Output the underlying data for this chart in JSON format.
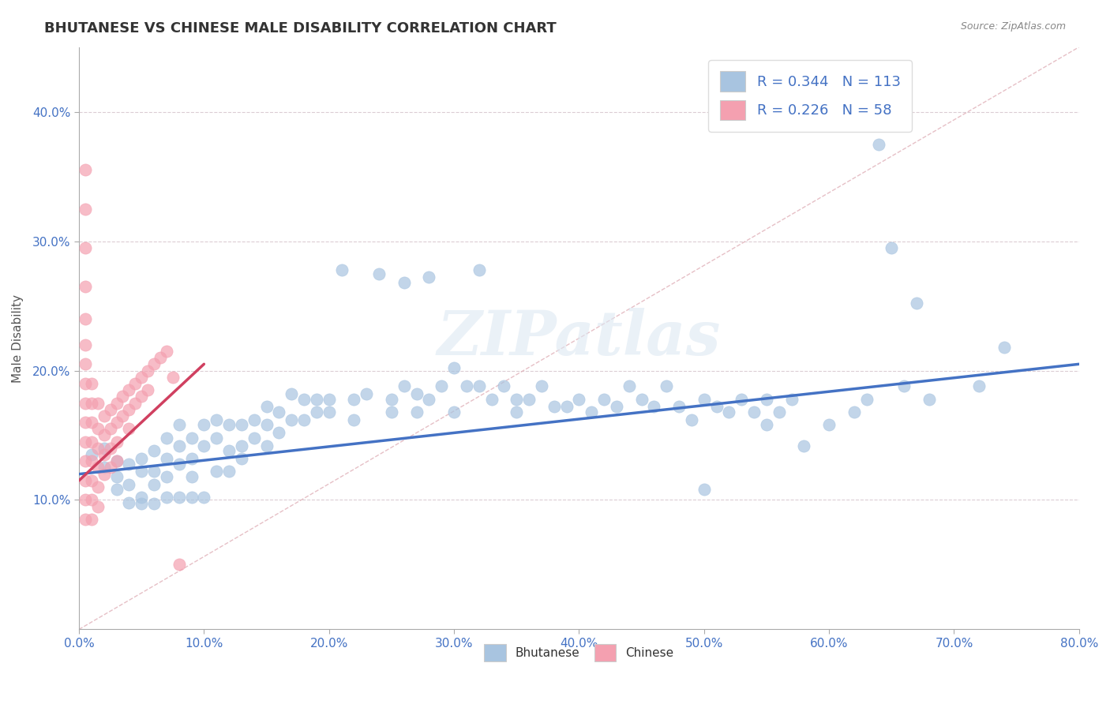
{
  "title": "BHUTANESE VS CHINESE MALE DISABILITY CORRELATION CHART",
  "source": "Source: ZipAtlas.com",
  "xlabel": "",
  "ylabel": "Male Disability",
  "xlim": [
    0.0,
    0.8
  ],
  "ylim": [
    0.0,
    0.45
  ],
  "xtick_labels": [
    "0.0%",
    "10.0%",
    "20.0%",
    "30.0%",
    "40.0%",
    "50.0%",
    "60.0%",
    "70.0%",
    "80.0%"
  ],
  "xtick_vals": [
    0.0,
    0.1,
    0.2,
    0.3,
    0.4,
    0.5,
    0.6,
    0.7,
    0.8
  ],
  "ytick_labels": [
    "10.0%",
    "20.0%",
    "30.0%",
    "40.0%"
  ],
  "ytick_vals": [
    0.1,
    0.2,
    0.3,
    0.4
  ],
  "bhutanese_color": "#a8c4e0",
  "chinese_color": "#f4a0b0",
  "bhutanese_R": 0.344,
  "bhutanese_N": 113,
  "chinese_R": 0.226,
  "chinese_N": 58,
  "trend_blue_color": "#4472c4",
  "trend_pink_color": "#d04060",
  "legend_R_color": "#4472c4",
  "watermark": "ZIPatlas",
  "blue_trend_x": [
    0.0,
    0.8
  ],
  "blue_trend_y": [
    0.12,
    0.205
  ],
  "pink_trend_x": [
    0.0,
    0.1
  ],
  "pink_trend_y": [
    0.115,
    0.205
  ],
  "ref_line_x": [
    0.0,
    0.8
  ],
  "ref_line_y": [
    0.0,
    0.45
  ],
  "bhutanese_scatter": [
    [
      0.01,
      0.135
    ],
    [
      0.02,
      0.125
    ],
    [
      0.02,
      0.14
    ],
    [
      0.03,
      0.13
    ],
    [
      0.03,
      0.118
    ],
    [
      0.03,
      0.108
    ],
    [
      0.04,
      0.128
    ],
    [
      0.04,
      0.112
    ],
    [
      0.04,
      0.098
    ],
    [
      0.05,
      0.132
    ],
    [
      0.05,
      0.122
    ],
    [
      0.05,
      0.102
    ],
    [
      0.05,
      0.097
    ],
    [
      0.06,
      0.138
    ],
    [
      0.06,
      0.122
    ],
    [
      0.06,
      0.112
    ],
    [
      0.06,
      0.097
    ],
    [
      0.07,
      0.148
    ],
    [
      0.07,
      0.132
    ],
    [
      0.07,
      0.118
    ],
    [
      0.07,
      0.102
    ],
    [
      0.08,
      0.158
    ],
    [
      0.08,
      0.142
    ],
    [
      0.08,
      0.128
    ],
    [
      0.08,
      0.102
    ],
    [
      0.09,
      0.148
    ],
    [
      0.09,
      0.132
    ],
    [
      0.09,
      0.118
    ],
    [
      0.09,
      0.102
    ],
    [
      0.1,
      0.158
    ],
    [
      0.1,
      0.142
    ],
    [
      0.1,
      0.102
    ],
    [
      0.11,
      0.162
    ],
    [
      0.11,
      0.148
    ],
    [
      0.11,
      0.122
    ],
    [
      0.12,
      0.158
    ],
    [
      0.12,
      0.138
    ],
    [
      0.12,
      0.122
    ],
    [
      0.13,
      0.158
    ],
    [
      0.13,
      0.142
    ],
    [
      0.13,
      0.132
    ],
    [
      0.14,
      0.162
    ],
    [
      0.14,
      0.148
    ],
    [
      0.15,
      0.172
    ],
    [
      0.15,
      0.158
    ],
    [
      0.15,
      0.142
    ],
    [
      0.16,
      0.168
    ],
    [
      0.16,
      0.152
    ],
    [
      0.17,
      0.182
    ],
    [
      0.17,
      0.162
    ],
    [
      0.18,
      0.178
    ],
    [
      0.18,
      0.162
    ],
    [
      0.19,
      0.178
    ],
    [
      0.19,
      0.168
    ],
    [
      0.2,
      0.178
    ],
    [
      0.2,
      0.168
    ],
    [
      0.21,
      0.278
    ],
    [
      0.22,
      0.178
    ],
    [
      0.22,
      0.162
    ],
    [
      0.23,
      0.182
    ],
    [
      0.24,
      0.275
    ],
    [
      0.25,
      0.178
    ],
    [
      0.25,
      0.168
    ],
    [
      0.26,
      0.268
    ],
    [
      0.26,
      0.188
    ],
    [
      0.27,
      0.182
    ],
    [
      0.27,
      0.168
    ],
    [
      0.28,
      0.272
    ],
    [
      0.28,
      0.178
    ],
    [
      0.29,
      0.188
    ],
    [
      0.3,
      0.202
    ],
    [
      0.3,
      0.168
    ],
    [
      0.31,
      0.188
    ],
    [
      0.32,
      0.278
    ],
    [
      0.32,
      0.188
    ],
    [
      0.33,
      0.178
    ],
    [
      0.34,
      0.188
    ],
    [
      0.35,
      0.178
    ],
    [
      0.35,
      0.168
    ],
    [
      0.36,
      0.178
    ],
    [
      0.37,
      0.188
    ],
    [
      0.38,
      0.172
    ],
    [
      0.39,
      0.172
    ],
    [
      0.4,
      0.178
    ],
    [
      0.41,
      0.168
    ],
    [
      0.42,
      0.178
    ],
    [
      0.43,
      0.172
    ],
    [
      0.44,
      0.188
    ],
    [
      0.45,
      0.178
    ],
    [
      0.46,
      0.172
    ],
    [
      0.47,
      0.188
    ],
    [
      0.48,
      0.172
    ],
    [
      0.49,
      0.162
    ],
    [
      0.5,
      0.178
    ],
    [
      0.5,
      0.108
    ],
    [
      0.51,
      0.172
    ],
    [
      0.52,
      0.168
    ],
    [
      0.53,
      0.178
    ],
    [
      0.54,
      0.168
    ],
    [
      0.55,
      0.178
    ],
    [
      0.55,
      0.158
    ],
    [
      0.56,
      0.168
    ],
    [
      0.57,
      0.178
    ],
    [
      0.58,
      0.142
    ],
    [
      0.6,
      0.158
    ],
    [
      0.62,
      0.168
    ],
    [
      0.63,
      0.178
    ],
    [
      0.64,
      0.375
    ],
    [
      0.65,
      0.295
    ],
    [
      0.66,
      0.188
    ],
    [
      0.67,
      0.252
    ],
    [
      0.68,
      0.178
    ],
    [
      0.72,
      0.188
    ],
    [
      0.74,
      0.218
    ]
  ],
  "chinese_scatter": [
    [
      0.005,
      0.16
    ],
    [
      0.005,
      0.145
    ],
    [
      0.005,
      0.13
    ],
    [
      0.005,
      0.115
    ],
    [
      0.005,
      0.1
    ],
    [
      0.005,
      0.085
    ],
    [
      0.005,
      0.175
    ],
    [
      0.005,
      0.19
    ],
    [
      0.005,
      0.205
    ],
    [
      0.005,
      0.22
    ],
    [
      0.005,
      0.24
    ],
    [
      0.005,
      0.265
    ],
    [
      0.005,
      0.295
    ],
    [
      0.005,
      0.325
    ],
    [
      0.005,
      0.355
    ],
    [
      0.01,
      0.16
    ],
    [
      0.01,
      0.145
    ],
    [
      0.01,
      0.13
    ],
    [
      0.01,
      0.115
    ],
    [
      0.01,
      0.1
    ],
    [
      0.01,
      0.085
    ],
    [
      0.01,
      0.175
    ],
    [
      0.01,
      0.19
    ],
    [
      0.015,
      0.155
    ],
    [
      0.015,
      0.14
    ],
    [
      0.015,
      0.125
    ],
    [
      0.015,
      0.11
    ],
    [
      0.015,
      0.095
    ],
    [
      0.015,
      0.175
    ],
    [
      0.02,
      0.165
    ],
    [
      0.02,
      0.15
    ],
    [
      0.02,
      0.135
    ],
    [
      0.02,
      0.12
    ],
    [
      0.025,
      0.17
    ],
    [
      0.025,
      0.155
    ],
    [
      0.025,
      0.14
    ],
    [
      0.025,
      0.125
    ],
    [
      0.03,
      0.175
    ],
    [
      0.03,
      0.16
    ],
    [
      0.03,
      0.145
    ],
    [
      0.03,
      0.13
    ],
    [
      0.035,
      0.18
    ],
    [
      0.035,
      0.165
    ],
    [
      0.04,
      0.185
    ],
    [
      0.04,
      0.17
    ],
    [
      0.04,
      0.155
    ],
    [
      0.045,
      0.19
    ],
    [
      0.045,
      0.175
    ],
    [
      0.05,
      0.195
    ],
    [
      0.05,
      0.18
    ],
    [
      0.055,
      0.2
    ],
    [
      0.055,
      0.185
    ],
    [
      0.06,
      0.205
    ],
    [
      0.065,
      0.21
    ],
    [
      0.07,
      0.215
    ],
    [
      0.075,
      0.195
    ],
    [
      0.08,
      0.05
    ]
  ]
}
